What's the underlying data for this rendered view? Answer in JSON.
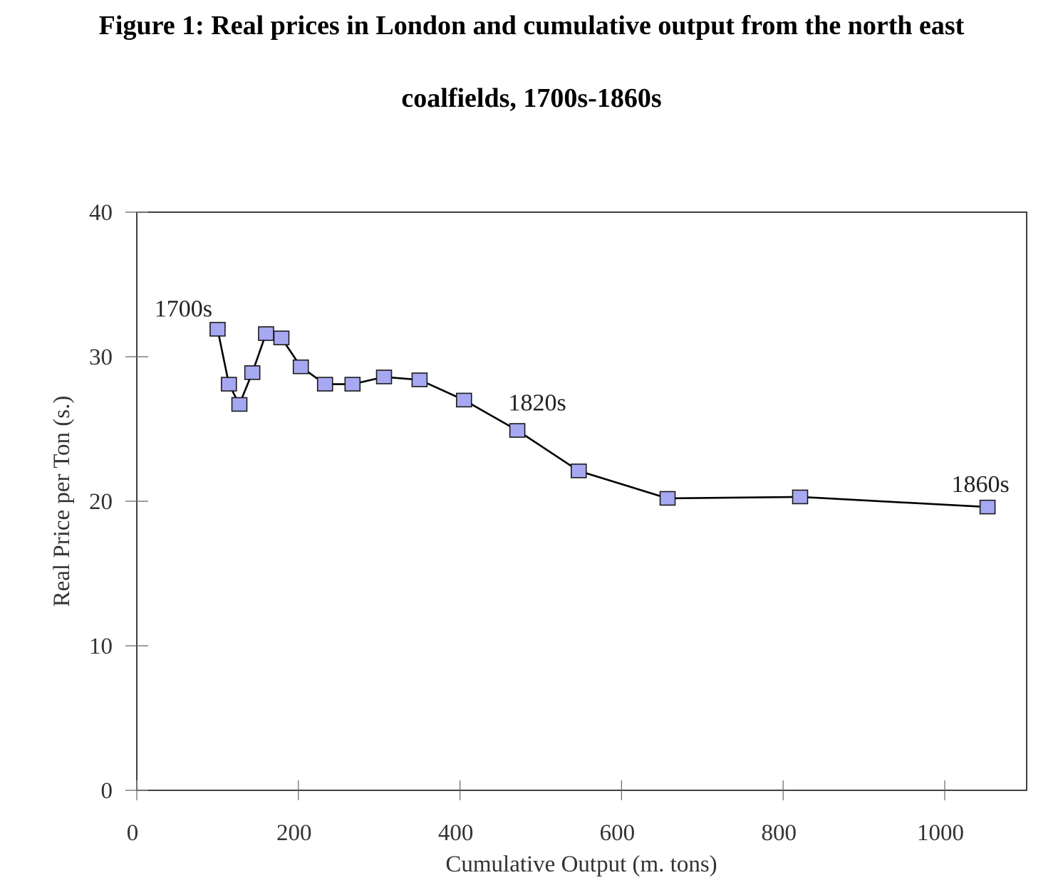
{
  "title": {
    "line1": "Figure 1: Real prices in London and cumulative output from the north east",
    "line2": "coalfields, 1700s-1860s"
  },
  "chart_data": {
    "type": "line",
    "title": "Figure 1: Real prices in London and cumulative output from the north east coalfields, 1700s-1860s",
    "xlabel": "Cumulative Output (m. tons)",
    "ylabel": "Real Price per Ton (s.)",
    "xlim": [
      0,
      1100
    ],
    "ylim": [
      0,
      40
    ],
    "xticks": [
      0,
      200,
      400,
      600,
      800,
      1000
    ],
    "yticks": [
      0,
      10,
      20,
      30,
      40
    ],
    "grid": false,
    "legend": "none",
    "series": [
      {
        "name": "Real price",
        "x": [
          100,
          114,
          127,
          143,
          160,
          179,
          203,
          233,
          267,
          306,
          350,
          405,
          471,
          547,
          657,
          821,
          1053
        ],
        "y": [
          31.9,
          28.1,
          26.7,
          28.9,
          31.6,
          31.3,
          29.3,
          28.1,
          28.1,
          28.6,
          28.4,
          27.0,
          24.9,
          22.1,
          20.2,
          20.3,
          19.6
        ]
      }
    ],
    "annotations": [
      {
        "text": "1700s",
        "x": 100,
        "y": 31.9
      },
      {
        "text": "1820s",
        "x": 471,
        "y": 24.9
      },
      {
        "text": "1860s",
        "x": 1053,
        "y": 19.6
      }
    ],
    "colors": {
      "marker_fill": "#a6a8f2",
      "marker_stroke": "#1a1a1a",
      "line": "#000000"
    }
  }
}
